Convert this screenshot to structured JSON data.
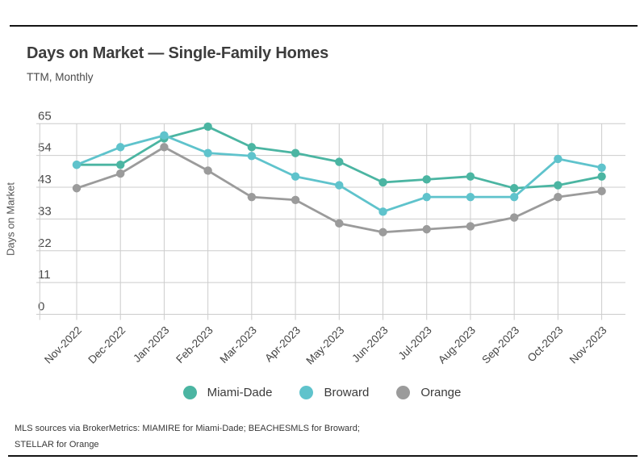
{
  "header": {
    "title": "Days on Market — Single-Family Homes",
    "subtitle": "TTM, Monthly"
  },
  "chart_data": {
    "type": "line",
    "title": "Days on Market — Single-Family Homes",
    "subtitle": "TTM, Monthly",
    "xlabel": "",
    "ylabel": "Days on Market",
    "ylim": [
      0,
      65
    ],
    "ytick_labels": [
      "0",
      "11",
      "22",
      "33",
      "43",
      "54",
      "65"
    ],
    "grid": true,
    "legend_position": "bottom",
    "categories": [
      "Nov-2022",
      "Dec-2022",
      "Jan-2023",
      "Feb-2023",
      "Mar-2023",
      "Apr-2023",
      "May-2023",
      "Jun-2023",
      "Jul-2023",
      "Aug-2023",
      "Sep-2023",
      "Oct-2023",
      "Nov-2023"
    ],
    "series": [
      {
        "name": "Miami-Dade",
        "color": "#4bb5a2",
        "values": [
          51,
          51,
          60,
          64,
          57,
          55,
          52,
          45,
          46,
          47,
          43,
          44,
          47
        ]
      },
      {
        "name": "Broward",
        "color": "#5fc3cc",
        "values": [
          51,
          57,
          61,
          55,
          54,
          47,
          44,
          35,
          40,
          40,
          40,
          53,
          50
        ]
      },
      {
        "name": "Orange",
        "color": "#9b9b9b",
        "values": [
          43,
          48,
          57,
          49,
          40,
          39,
          31,
          28,
          29,
          30,
          33,
          40,
          42
        ]
      }
    ]
  },
  "footer": {
    "line1": "MLS sources via BrokerMetrics: MIAMIRE for Miami-Dade; BEACHESMLS for Broward;",
    "line2": "STELLAR for Orange"
  },
  "colors": {
    "gridline": "#cccccc",
    "tick_text": "#4a4a4a",
    "rule": "#141414"
  }
}
